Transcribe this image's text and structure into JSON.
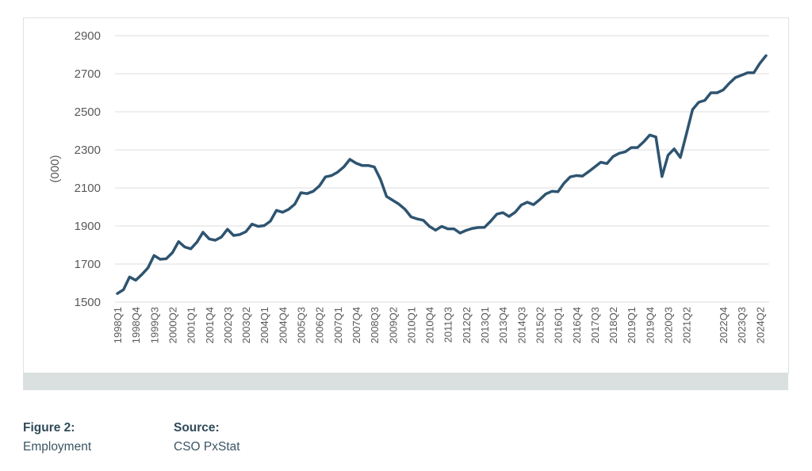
{
  "chart_data": {
    "type": "line",
    "ylabel": "(000)",
    "ylim": [
      1500,
      2900
    ],
    "yticks": [
      1500,
      1700,
      1900,
      2100,
      2300,
      2500,
      2700,
      2900
    ],
    "grid": "horizontal",
    "line_color": "#2e5470",
    "xtick_labels": [
      "1998Q1",
      "1998Q4",
      "1999Q3",
      "2000Q2",
      "2001Q1",
      "2001Q4",
      "2002Q3",
      "2003Q2",
      "2004Q1",
      "2004Q4",
      "2005Q3",
      "2006Q2",
      "2007Q1",
      "2007Q4",
      "2008Q3",
      "2009Q2",
      "2010Q1",
      "2010Q4",
      "2011Q3",
      "2012Q2",
      "2013Q1",
      "2013Q4",
      "2014Q3",
      "2015Q2",
      "2016Q1",
      "2016Q4",
      "2017Q3",
      "2018Q2",
      "2019Q1",
      "2019Q4",
      "2020Q3",
      "2021Q2",
      "2022Q4",
      "2023Q3",
      "2024Q2"
    ],
    "series": [
      {
        "x": [
          "1998Q1",
          "1998Q2",
          "1998Q3",
          "1998Q4",
          "1999Q1",
          "1999Q2",
          "1999Q3",
          "1999Q4",
          "2000Q1",
          "2000Q2",
          "2000Q3",
          "2000Q4",
          "2001Q1",
          "2001Q2",
          "2001Q3",
          "2001Q4",
          "2002Q1",
          "2002Q2",
          "2002Q3",
          "2002Q4",
          "2003Q1",
          "2003Q2",
          "2003Q3",
          "2003Q4",
          "2004Q1",
          "2004Q2",
          "2004Q3",
          "2004Q4",
          "2005Q1",
          "2005Q2",
          "2005Q3",
          "2005Q4",
          "2006Q1",
          "2006Q2",
          "2006Q3",
          "2006Q4",
          "2007Q1",
          "2007Q2",
          "2007Q3",
          "2007Q4",
          "2008Q1",
          "2008Q2",
          "2008Q3",
          "2008Q4",
          "2009Q1",
          "2009Q2",
          "2009Q3",
          "2009Q4",
          "2010Q1",
          "2010Q2",
          "2010Q3",
          "2010Q4",
          "2011Q1",
          "2011Q2",
          "2011Q3",
          "2011Q4",
          "2012Q1",
          "2012Q2",
          "2012Q3",
          "2012Q4",
          "2013Q1",
          "2013Q2",
          "2013Q3",
          "2013Q4",
          "2014Q1",
          "2014Q2",
          "2014Q3",
          "2014Q4",
          "2015Q1",
          "2015Q2",
          "2015Q3",
          "2015Q4",
          "2016Q1",
          "2016Q2",
          "2016Q3",
          "2016Q4",
          "2017Q1",
          "2017Q2",
          "2017Q3",
          "2017Q4",
          "2018Q1",
          "2018Q2",
          "2018Q3",
          "2018Q4",
          "2019Q1",
          "2019Q2",
          "2019Q3",
          "2019Q4",
          "2020Q1",
          "2020Q2",
          "2020Q3",
          "2020Q4",
          "2021Q1",
          "2021Q2",
          "2021Q3",
          "2021Q4",
          "2022Q1",
          "2022Q2",
          "2022Q3",
          "2022Q4",
          "2023Q1",
          "2023Q2",
          "2023Q3",
          "2023Q4",
          "2024Q1",
          "2024Q2",
          "2024Q3"
        ],
        "values": [
          1545,
          1565,
          1632,
          1615,
          1645,
          1680,
          1745,
          1725,
          1728,
          1760,
          1818,
          1790,
          1780,
          1815,
          1867,
          1832,
          1825,
          1842,
          1883,
          1850,
          1855,
          1870,
          1910,
          1898,
          1902,
          1925,
          1982,
          1972,
          1988,
          2015,
          2075,
          2070,
          2082,
          2110,
          2158,
          2165,
          2183,
          2210,
          2250,
          2230,
          2218,
          2218,
          2210,
          2145,
          2055,
          2035,
          2015,
          1988,
          1948,
          1937,
          1930,
          1898,
          1878,
          1898,
          1885,
          1885,
          1863,
          1877,
          1887,
          1892,
          1893,
          1925,
          1962,
          1970,
          1950,
          1972,
          2010,
          2025,
          2012,
          2038,
          2068,
          2082,
          2080,
          2125,
          2158,
          2165,
          2162,
          2185,
          2210,
          2235,
          2228,
          2265,
          2282,
          2290,
          2312,
          2312,
          2342,
          2378,
          2368,
          2160,
          2272,
          2305,
          2260,
          2385,
          2512,
          2550,
          2560,
          2600,
          2600,
          2615,
          2650,
          2680,
          2692,
          2705,
          2705,
          2755,
          2795
        ]
      }
    ]
  },
  "caption": {
    "figure_label": "Figure 2:",
    "figure_title": "Employment",
    "source_label": "Source:",
    "source_value": "CSO PxStat"
  }
}
